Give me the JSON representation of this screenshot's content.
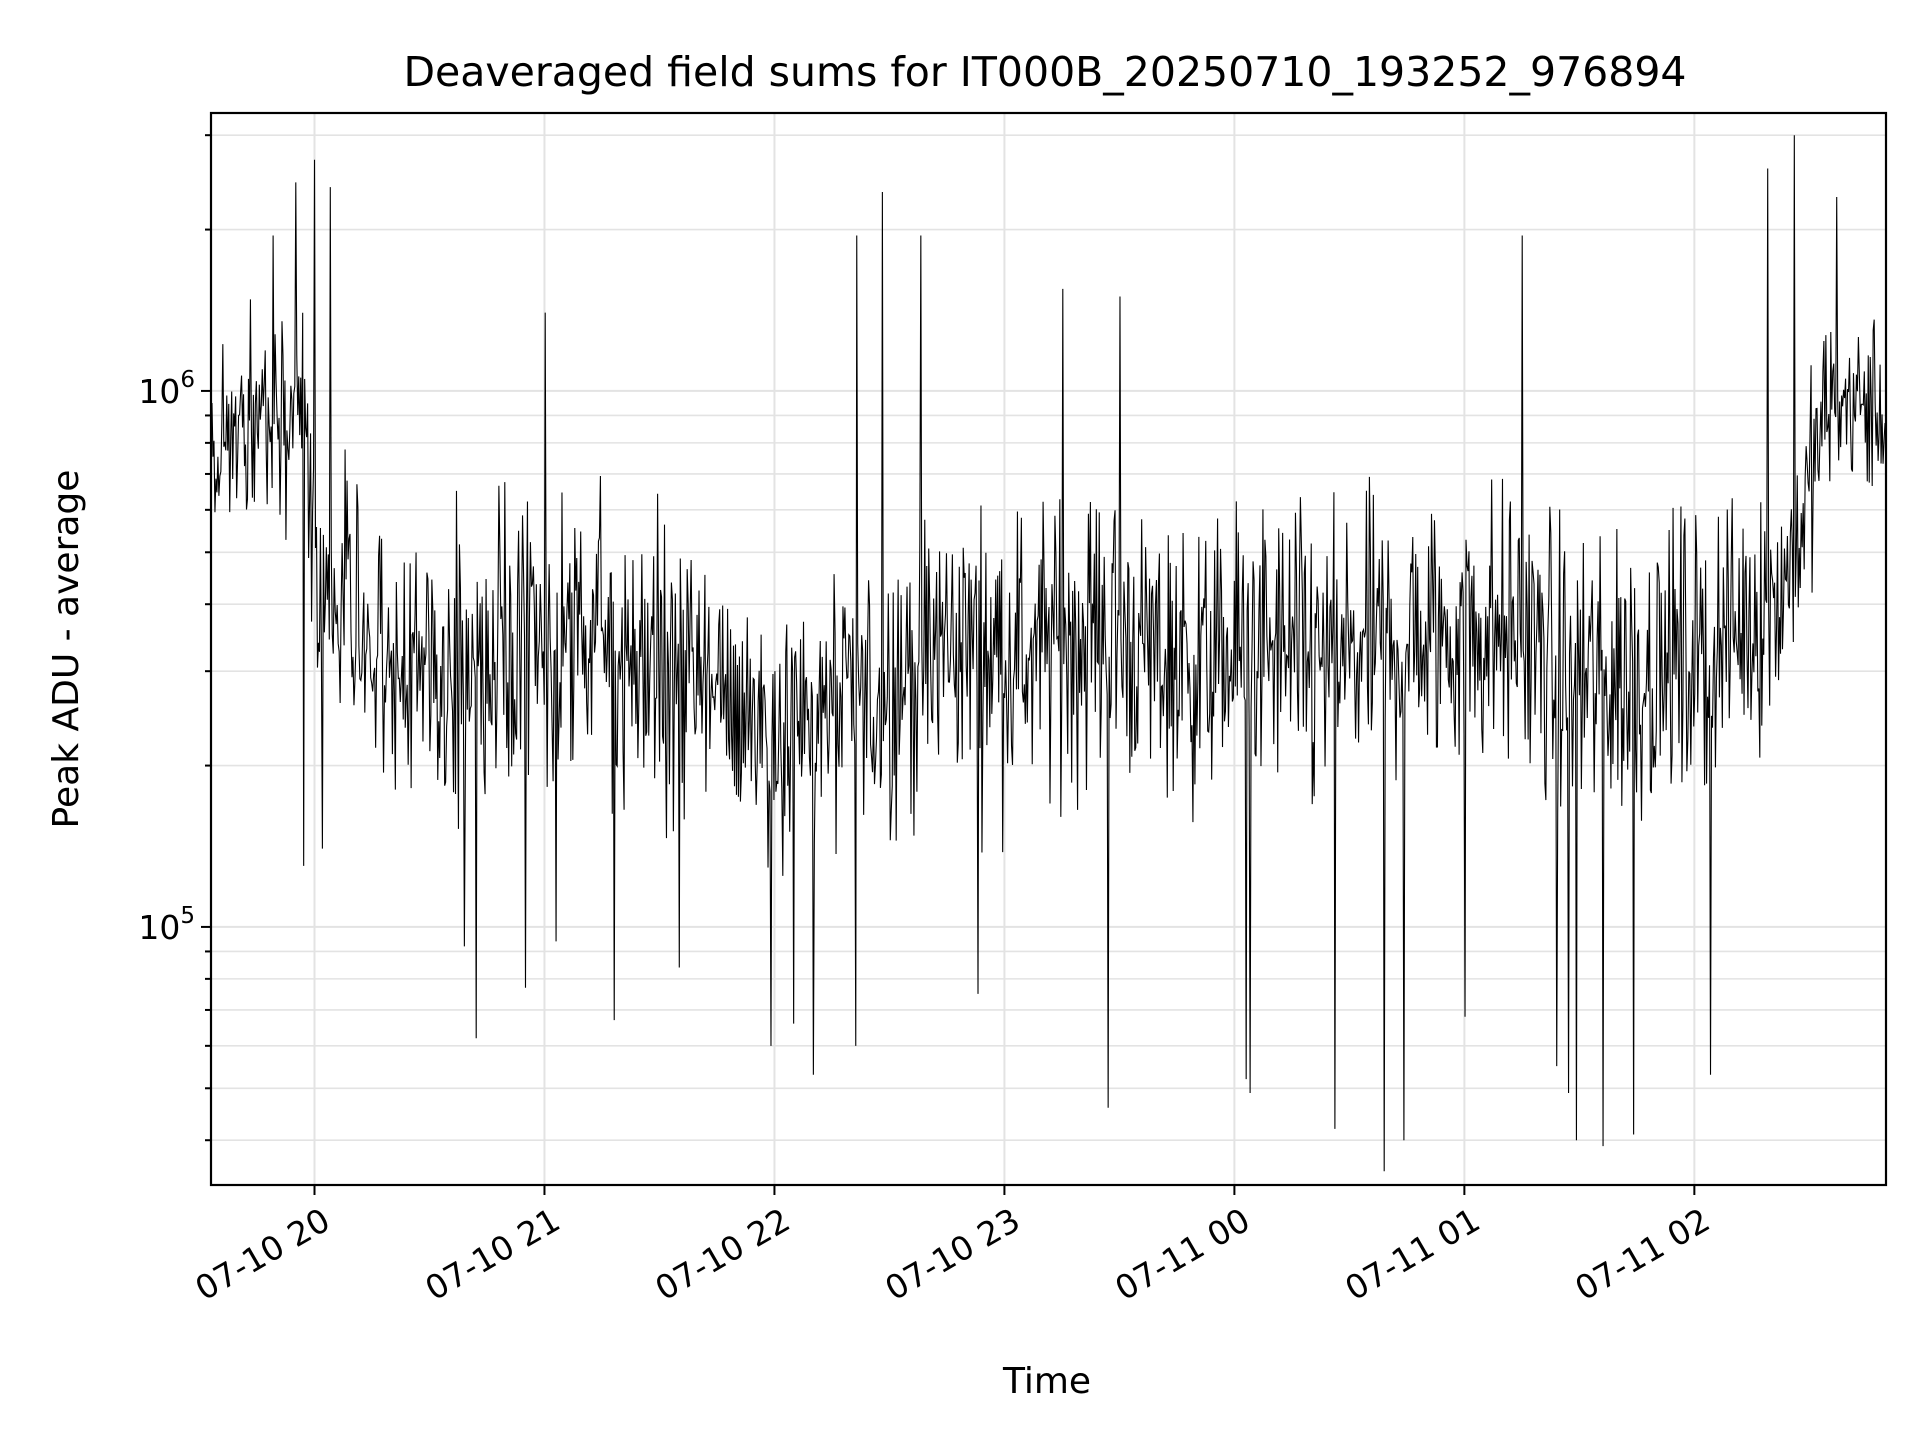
{
  "chart_data": {
    "type": "line",
    "title": "Deaveraged field sums for IT000B_20250710_193252_976894",
    "xlabel": "Time",
    "ylabel": "Peak ADU - average",
    "y_scale": "log",
    "ylim": [
      33000,
      3300000
    ],
    "xlim": [
      "2025-07-10 19:33",
      "2025-07-11 02:50"
    ],
    "grid": true,
    "legend": "none",
    "line_color": "#000000",
    "x_ticks": [
      {
        "value": "2025-07-10 20:00",
        "label": "07-10 20"
      },
      {
        "value": "2025-07-10 21:00",
        "label": "07-10 21"
      },
      {
        "value": "2025-07-10 22:00",
        "label": "07-10 22"
      },
      {
        "value": "2025-07-10 23:00",
        "label": "07-10 23"
      },
      {
        "value": "2025-07-11 00:00",
        "label": "07-11 00"
      },
      {
        "value": "2025-07-11 01:00",
        "label": "07-11 01"
      },
      {
        "value": "2025-07-11 02:00",
        "label": "07-11 02"
      }
    ],
    "y_ticks": [
      {
        "value": 100000,
        "base": "10",
        "exp": "5"
      },
      {
        "value": 1000000,
        "base": "10",
        "exp": "6"
      }
    ],
    "series": [
      {
        "x": [
          "2025-07-10 19:33",
          "2025-07-10 19:40",
          "2025-07-10 19:47",
          "2025-07-10 19:54",
          "2025-07-10 19:57",
          "2025-07-10 20:00",
          "2025-07-10 20:07",
          "2025-07-10 20:15",
          "2025-07-10 20:25",
          "2025-07-10 20:35",
          "2025-07-10 20:45",
          "2025-07-10 20:55",
          "2025-07-10 21:05",
          "2025-07-10 21:15",
          "2025-07-10 21:25",
          "2025-07-10 21:35",
          "2025-07-10 21:45",
          "2025-07-10 21:55",
          "2025-07-10 22:05",
          "2025-07-10 22:15",
          "2025-07-10 22:25",
          "2025-07-10 22:35",
          "2025-07-10 22:45",
          "2025-07-10 22:55",
          "2025-07-10 23:05",
          "2025-07-10 23:15",
          "2025-07-10 23:25",
          "2025-07-10 23:35",
          "2025-07-10 23:45",
          "2025-07-10 23:55",
          "2025-07-11 00:05",
          "2025-07-11 00:15",
          "2025-07-11 00:25",
          "2025-07-11 00:35",
          "2025-07-11 00:45",
          "2025-07-11 00:55",
          "2025-07-11 01:05",
          "2025-07-11 01:15",
          "2025-07-11 01:25",
          "2025-07-11 01:35",
          "2025-07-11 01:45",
          "2025-07-11 01:55",
          "2025-07-11 02:05",
          "2025-07-11 02:15",
          "2025-07-11 02:22",
          "2025-07-11 02:28",
          "2025-07-11 02:35",
          "2025-07-11 02:42",
          "2025-07-11 02:50"
        ],
        "median": [
          750000,
          820000,
          900000,
          1000000,
          950000,
          420000,
          400000,
          360000,
          300000,
          290000,
          310000,
          320000,
          330000,
          340000,
          310000,
          300000,
          270000,
          250000,
          240000,
          250000,
          260000,
          300000,
          340000,
          330000,
          320000,
          340000,
          360000,
          330000,
          310000,
          310000,
          330000,
          320000,
          300000,
          330000,
          340000,
          350000,
          360000,
          350000,
          300000,
          290000,
          300000,
          310000,
          330000,
          380000,
          420000,
          550000,
          950000,
          950000,
          900000
        ],
        "spread": [
          0.55,
          0.55,
          0.55,
          0.6,
          0.6,
          0.75,
          0.75,
          0.75,
          0.8,
          0.8,
          0.8,
          0.8,
          0.8,
          0.8,
          0.8,
          0.8,
          0.8,
          0.8,
          0.8,
          0.8,
          0.8,
          0.8,
          0.8,
          0.8,
          0.8,
          0.8,
          0.8,
          0.8,
          0.8,
          0.8,
          0.8,
          0.8,
          0.8,
          0.8,
          0.8,
          0.8,
          0.8,
          0.8,
          0.85,
          0.85,
          0.85,
          0.8,
          0.75,
          0.75,
          0.7,
          0.6,
          0.5,
          0.5,
          0.5
        ],
        "spikes": [
          {
            "x": "2025-07-10 19:49",
            "y": 1950000
          },
          {
            "x": "2025-07-10 19:55",
            "y": 2450000
          },
          {
            "x": "2025-07-10 19:57",
            "y": 130000
          },
          {
            "x": "2025-07-10 20:00",
            "y": 2700000
          },
          {
            "x": "2025-07-10 20:02",
            "y": 140000
          },
          {
            "x": "2025-07-10 20:04",
            "y": 2400000
          },
          {
            "x": "2025-07-10 20:39",
            "y": 92000
          },
          {
            "x": "2025-07-10 20:42",
            "y": 62000
          },
          {
            "x": "2025-07-10 20:55",
            "y": 77000
          },
          {
            "x": "2025-07-10 21:00",
            "y": 1400000
          },
          {
            "x": "2025-07-10 21:03",
            "y": 94000
          },
          {
            "x": "2025-07-10 21:18",
            "y": 67000
          },
          {
            "x": "2025-07-10 21:35",
            "y": 84000
          },
          {
            "x": "2025-07-10 21:59",
            "y": 60000
          },
          {
            "x": "2025-07-10 22:05",
            "y": 66000
          },
          {
            "x": "2025-07-10 22:10",
            "y": 53000
          },
          {
            "x": "2025-07-10 22:21",
            "y": 60000
          },
          {
            "x": "2025-07-10 22:21",
            "y": 1950000
          },
          {
            "x": "2025-07-10 22:28",
            "y": 2350000
          },
          {
            "x": "2025-07-10 22:38",
            "y": 1950000
          },
          {
            "x": "2025-07-10 22:53",
            "y": 75000
          },
          {
            "x": "2025-07-10 23:15",
            "y": 1550000
          },
          {
            "x": "2025-07-10 23:27",
            "y": 46000
          },
          {
            "x": "2025-07-10 23:30",
            "y": 1500000
          },
          {
            "x": "2025-07-11 00:03",
            "y": 52000
          },
          {
            "x": "2025-07-11 00:04",
            "y": 49000
          },
          {
            "x": "2025-07-11 00:26",
            "y": 42000
          },
          {
            "x": "2025-07-11 00:39",
            "y": 35000
          },
          {
            "x": "2025-07-11 00:44",
            "y": 40000
          },
          {
            "x": "2025-07-11 01:00",
            "y": 68000
          },
          {
            "x": "2025-07-11 01:15",
            "y": 1950000
          },
          {
            "x": "2025-07-11 01:24",
            "y": 55000
          },
          {
            "x": "2025-07-11 01:27",
            "y": 49000
          },
          {
            "x": "2025-07-11 01:29",
            "y": 40000
          },
          {
            "x": "2025-07-11 01:36",
            "y": 39000
          },
          {
            "x": "2025-07-11 01:44",
            "y": 41000
          },
          {
            "x": "2025-07-11 02:04",
            "y": 53000
          },
          {
            "x": "2025-07-11 02:19",
            "y": 2600000
          },
          {
            "x": "2025-07-11 02:26",
            "y": 3000000
          },
          {
            "x": "2025-07-11 02:37",
            "y": 2300000
          }
        ]
      }
    ]
  }
}
